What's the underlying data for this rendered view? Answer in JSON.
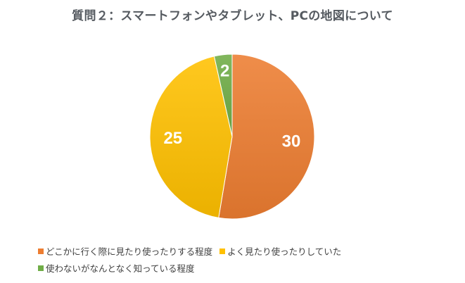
{
  "chart_data": {
    "type": "pie",
    "title": "質問２：スマートフォンやタブレット、PCの地図について",
    "slices": [
      {
        "label": "どこかに行く際に見たり使ったりする程度",
        "value": 30,
        "color": "#ED7D31"
      },
      {
        "label": "よく見たり使ったりしていた",
        "value": 25,
        "color": "#FFC000"
      },
      {
        "label": "使わないがなんとなく知っている程度",
        "value": 2,
        "color": "#70AD47"
      }
    ],
    "data_labels": [
      "30",
      "25",
      "2"
    ],
    "legend_position": "bottom",
    "start_angle": "12 o'clock",
    "direction": "clockwise"
  }
}
